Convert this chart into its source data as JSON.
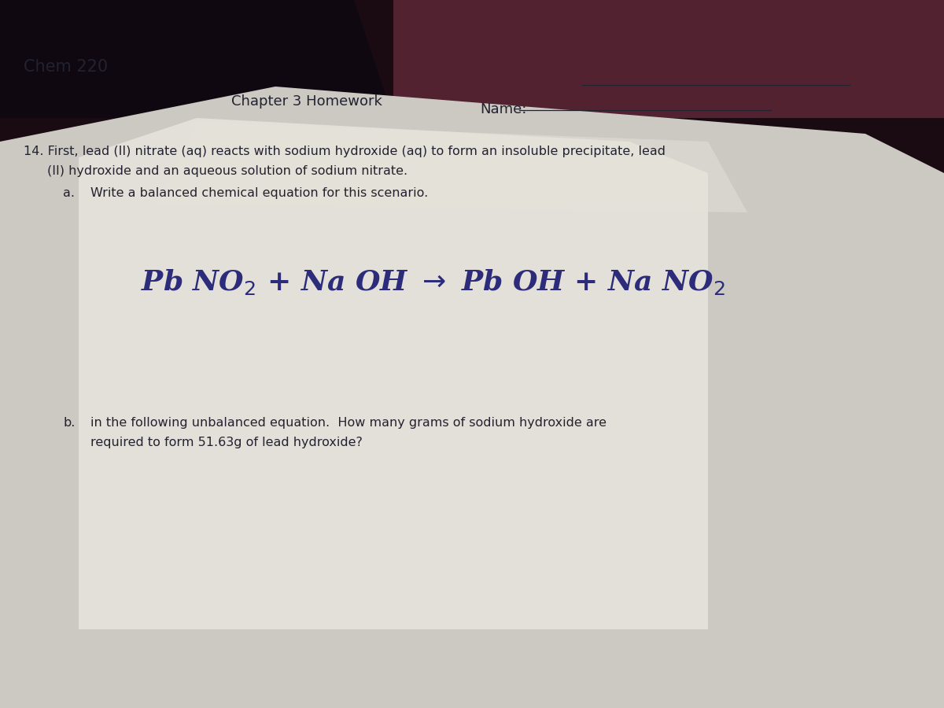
{
  "bg_outer": "#1a0a10",
  "bg_mid": "#5a3040",
  "paper_main": "#ccc9c2",
  "paper_bright": "#dedad3",
  "paper_top": "#e8e5de",
  "paper_center": "#edeae3",
  "header_left": "Chem 220",
  "header_center": "Chapter 3 Homework",
  "header_name": "Name:",
  "question_number": "14.",
  "q14_line1": " First, lead (II) nitrate (aq) reacts with sodium hydroxide (aq) to form an insoluble precipitate, lead",
  "q14_line2": "(II) hydroxide and an aqueous solution of sodium nitrate.",
  "qa_label": "a.",
  "qa_text": "Write a balanced chemical equation for this scenario.",
  "equation": "Pb NO$_2$ + Na OH $\\rightarrow$ Pb OH + Na NO$_2$",
  "qb_label": "b.",
  "qb_line1": "in the following unbalanced equation.  How many grams of sodium hydroxide are",
  "qb_line2": "required to form 51.63g of lead hydroxide?",
  "text_dark": "#222230",
  "blue_ink": "#2c2c7a",
  "font_header": 13,
  "font_body": 11.5,
  "font_equation": 26
}
